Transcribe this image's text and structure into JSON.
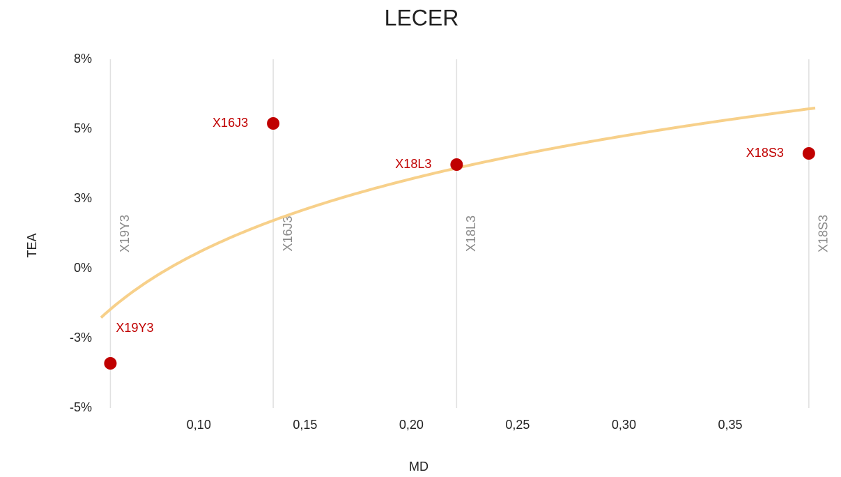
{
  "chart_data": {
    "type": "scatter",
    "title": "LECER",
    "x_label": "MD",
    "y_label": "TEA",
    "labels": [
      "X19Y3",
      "X16J3",
      "X18L3",
      "X18S3"
    ],
    "x": [
      0.0584,
      0.135,
      0.2213,
      0.387
    ],
    "values": [
      -3.4,
      5.2,
      3.725,
      4.125
    ],
    "color": "#c00000",
    "drop_line_color": "#e0e0e0",
    "trendline": {
      "type": "log",
      "intercept": 9.33,
      "slope": 3.8,
      "color": "#f7d08a"
    },
    "xlim": [
      0.054,
      0.39
    ],
    "xticks": [
      {
        "value": 0.1,
        "label": "0,10"
      },
      {
        "value": 0.15,
        "label": "0,15"
      },
      {
        "value": 0.2,
        "label": "0,20"
      },
      {
        "value": 0.25,
        "label": "0,25"
      },
      {
        "value": 0.3,
        "label": "0,30"
      },
      {
        "value": 0.35,
        "label": "0,35"
      }
    ],
    "ylim": [
      -5,
      7.5
    ],
    "yticks": [
      {
        "value": 7.5,
        "label": "8%"
      },
      {
        "value": 5,
        "label": "5%"
      },
      {
        "value": 2.5,
        "label": "3%"
      },
      {
        "value": 0,
        "label": "0%"
      },
      {
        "value": -2.5,
        "label": "-3%"
      },
      {
        "value": -5,
        "label": "-5%"
      }
    ]
  }
}
